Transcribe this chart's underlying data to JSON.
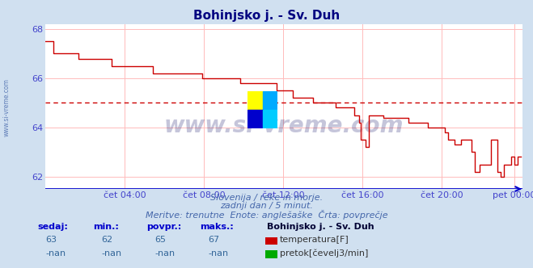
{
  "title": "Bohinjsko j. - Sv. Duh",
  "title_color": "#000080",
  "bg_color": "#d0e0f0",
  "plot_bg_color": "#ffffff",
  "grid_color": "#ffbbbb",
  "line_color": "#cc0000",
  "avg_line_color": "#cc0000",
  "axis_line_color": "#0000cc",
  "ylabel_color": "#4444cc",
  "xlabel_color": "#4444cc",
  "ylim": [
    61.5,
    68.2
  ],
  "xlim": [
    0,
    289
  ],
  "avg_value": 65.0,
  "subtitle1": "Slovenija / reke in morje.",
  "subtitle2": "zadnji dan / 5 minut.",
  "subtitle3": "Meritve: trenutne  Enote: anglešaške  Črta: povprečje",
  "subtitle_color": "#4466aa",
  "footer_label_color": "#0000cc",
  "footer_value_color": "#336699",
  "sedaj": 63,
  "min_val": 62,
  "povpr": 65,
  "maks": 67,
  "station": "Bohinjsko j. - Sv. Duh",
  "legend_temp_color": "#cc0000",
  "legend_pretok_color": "#00aa00",
  "yticks": [
    62,
    64,
    66,
    68
  ],
  "xtick_labels": [
    "čet 04:00",
    "čet 08:00",
    "čet 12:00",
    "čet 16:00",
    "čet 20:00",
    "pet 00:00"
  ],
  "xtick_positions": [
    48,
    96,
    144,
    192,
    240,
    284
  ],
  "watermark_text": "www.si-vreme.com",
  "logo_colors": [
    "#ffff00",
    "#00aaff",
    "#0000cc",
    "#00ccff"
  ],
  "segments": [
    [
      0,
      67.5
    ],
    [
      5,
      67.0
    ],
    [
      15,
      67.0
    ],
    [
      20,
      66.8
    ],
    [
      35,
      66.8
    ],
    [
      40,
      66.5
    ],
    [
      55,
      66.5
    ],
    [
      65,
      66.2
    ],
    [
      80,
      66.2
    ],
    [
      95,
      66.0
    ],
    [
      108,
      66.0
    ],
    [
      118,
      65.8
    ],
    [
      130,
      65.8
    ],
    [
      140,
      65.5
    ],
    [
      145,
      65.5
    ],
    [
      150,
      65.2
    ],
    [
      158,
      65.2
    ],
    [
      162,
      65.0
    ],
    [
      170,
      65.0
    ],
    [
      176,
      64.8
    ],
    [
      182,
      64.8
    ],
    [
      187,
      64.5
    ],
    [
      190,
      64.2
    ],
    [
      191,
      63.5
    ],
    [
      193,
      63.5
    ],
    [
      194,
      63.2
    ],
    [
      196,
      64.5
    ],
    [
      200,
      64.5
    ],
    [
      205,
      64.4
    ],
    [
      215,
      64.4
    ],
    [
      220,
      64.2
    ],
    [
      228,
      64.2
    ],
    [
      232,
      64.0
    ],
    [
      240,
      64.0
    ],
    [
      242,
      63.8
    ],
    [
      244,
      63.5
    ],
    [
      246,
      63.5
    ],
    [
      248,
      63.3
    ],
    [
      250,
      63.3
    ],
    [
      252,
      63.5
    ],
    [
      254,
      63.5
    ],
    [
      258,
      63.0
    ],
    [
      260,
      62.2
    ],
    [
      263,
      62.5
    ],
    [
      267,
      62.5
    ],
    [
      270,
      63.5
    ],
    [
      272,
      63.5
    ],
    [
      274,
      62.2
    ],
    [
      276,
      62.0
    ],
    [
      278,
      62.5
    ],
    [
      280,
      62.5
    ],
    [
      282,
      62.8
    ],
    [
      284,
      62.5
    ],
    [
      286,
      62.8
    ],
    [
      288,
      62.8
    ]
  ]
}
